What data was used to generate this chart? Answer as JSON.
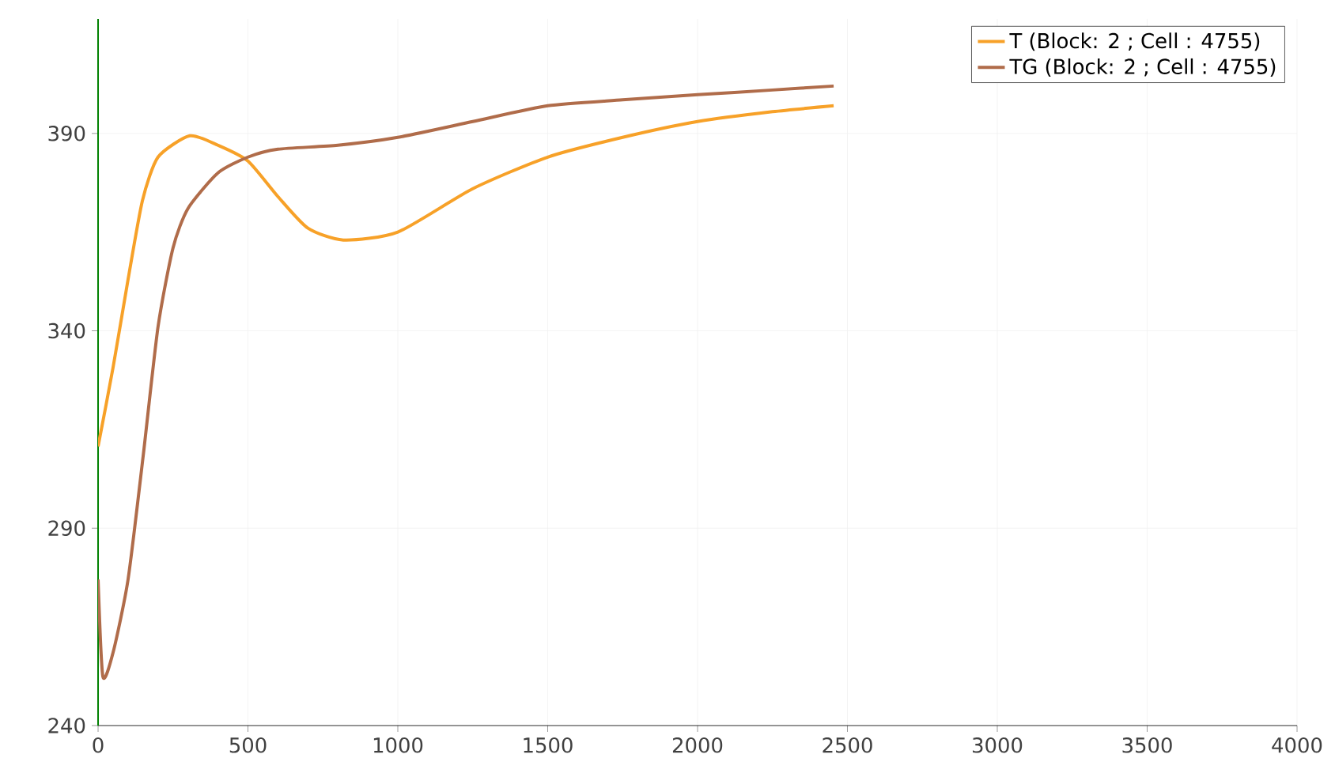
{
  "chart_data": {
    "type": "line",
    "xlim": [
      0,
      4000
    ],
    "ylim": [
      240,
      419
    ],
    "xticks": [
      0,
      500,
      1000,
      1500,
      2000,
      2500,
      3000,
      3500,
      4000
    ],
    "yticks": [
      240,
      290,
      340,
      390
    ],
    "grid": true,
    "legend": "top right",
    "marker": "none",
    "line_style": "solid",
    "series": [
      {
        "name": "T (Block: 2 ; Cell : 4755)",
        "color": "#f7a128",
        "x": [
          0,
          50,
          100,
          148,
          200,
          306,
          400,
          500,
          600,
          700,
          818,
          1000,
          1250,
          1500,
          1750,
          2000,
          2250,
          2454
        ],
        "values": [
          310.7,
          330.7,
          353,
          373,
          384,
          389.4,
          387,
          383,
          374,
          366,
          363,
          365,
          376,
          384,
          389,
          393,
          395.5,
          397
        ]
      },
      {
        "name": "TG (Block: 2 ; Cell : 4755)",
        "color": "#b06c4a",
        "x": [
          0,
          16,
          50,
          100,
          150,
          200,
          250,
          300,
          400,
          500,
          600,
          800,
          1000,
          1250,
          1500,
          1750,
          2000,
          2250,
          2454
        ],
        "values": [
          277,
          252.4,
          258.5,
          277,
          308,
          341,
          361,
          371,
          380,
          384,
          386,
          387,
          389,
          393,
          397,
          398.5,
          399.8,
          401,
          402
        ]
      }
    ]
  }
}
